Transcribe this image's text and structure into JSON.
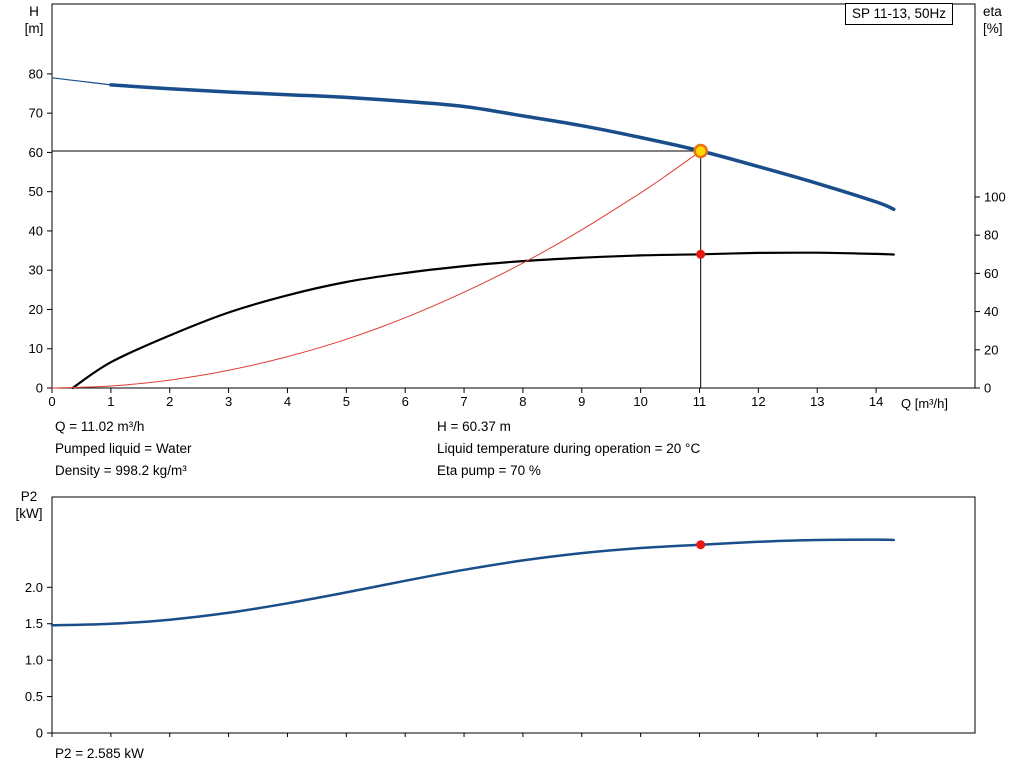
{
  "header": {
    "model": "SP 11-13, 50Hz"
  },
  "top_chart": {
    "y_left_symbol": "H",
    "y_left_unit": "[m]",
    "y_right_symbol": "eta",
    "y_right_unit": "[%]",
    "x_title": "Q [m³/h]"
  },
  "info": {
    "q": "Q = 11.02 m³/h",
    "liquid": "Pumped liquid = Water",
    "density": "Density = 998.2 kg/m³",
    "h": "H = 60.37 m",
    "temp": "Liquid temperature during operation = 20 °C",
    "eta": "Eta pump = 70 %"
  },
  "bottom_chart": {
    "y_symbol": "P2",
    "y_unit": "[kW]"
  },
  "p2_result": "P2 = 2.585 kW",
  "chart_data": [
    {
      "type": "line",
      "title": "SP 11-13, 50Hz",
      "xlabel": "Q [m³/h]",
      "ylabel_left": "H [m]",
      "ylabel_right": "eta [%]",
      "xlim": [
        0,
        15.68
      ],
      "ylim_left": [
        0,
        97.8
      ],
      "ylim_right": [
        0,
        201
      ],
      "grid": false,
      "legend": false,
      "x_ticks": {
        "values": [
          0,
          1,
          2,
          3,
          4,
          5,
          6,
          7,
          8,
          9,
          10,
          11,
          12,
          13,
          14
        ],
        "labels": [
          "0",
          "1",
          "2",
          "3",
          "4",
          "5",
          "6",
          "7",
          "8",
          "9",
          "10",
          "11",
          "12",
          "13",
          "14"
        ]
      },
      "y_ticks_left": {
        "values": [
          0,
          10,
          20,
          30,
          40,
          50,
          60,
          70,
          80
        ],
        "labels": [
          "0",
          "10",
          "20",
          "30",
          "40",
          "50",
          "60",
          "70",
          "80"
        ]
      },
      "y_ticks_right": {
        "values": [
          0,
          20,
          40,
          60,
          80,
          100
        ],
        "labels": [
          "0",
          "20",
          "40",
          "60",
          "80",
          "100"
        ]
      },
      "series": [
        {
          "name": "pump-curve-extension",
          "axis": "left",
          "color": "#1a4e8a",
          "width": 1.2,
          "points": [
            [
              0,
              79
            ],
            [
              0.5,
              78.1
            ],
            [
              1,
              77.2
            ]
          ]
        },
        {
          "name": "pump-curve",
          "axis": "left",
          "color": "#1a4e8a",
          "width": 3.5,
          "points": [
            [
              1,
              77.2
            ],
            [
              2,
              76.2
            ],
            [
              3,
              75.4
            ],
            [
              4,
              74.7
            ],
            [
              5,
              74.0
            ],
            [
              6,
              73.0
            ],
            [
              7,
              71.7
            ],
            [
              8,
              69.3
            ],
            [
              9,
              66.8
            ],
            [
              10,
              63.8
            ],
            [
              11.02,
              60.37
            ],
            [
              12,
              56.4
            ],
            [
              13,
              52.1
            ],
            [
              14,
              47.4
            ],
            [
              14.3,
              45.5
            ]
          ]
        },
        {
          "name": "efficiency-curve",
          "axis": "right",
          "color": "#000000",
          "width": 2.2,
          "points": [
            [
              0.35,
              0
            ],
            [
              1,
              13.5
            ],
            [
              2,
              27.5
            ],
            [
              3,
              39.5
            ],
            [
              4,
              48.5
            ],
            [
              5,
              55.5
            ],
            [
              6,
              60.2
            ],
            [
              7,
              63.8
            ],
            [
              8,
              66.4
            ],
            [
              9,
              68.2
            ],
            [
              10,
              69.4
            ],
            [
              11.02,
              70
            ],
            [
              12,
              70.7
            ],
            [
              13,
              70.8
            ],
            [
              14,
              70.2
            ],
            [
              14.3,
              69.9
            ]
          ]
        },
        {
          "name": "system-curve",
          "axis": "left",
          "color": "#e03c31",
          "width": 1,
          "points": [
            [
              0,
              0
            ],
            [
              1,
              0.5
            ],
            [
              2,
              2.0
            ],
            [
              3,
              4.5
            ],
            [
              4,
              8.0
            ],
            [
              5,
              12.4
            ],
            [
              6,
              17.9
            ],
            [
              7,
              24.4
            ],
            [
              8,
              31.8
            ],
            [
              9,
              40.3
            ],
            [
              10,
              49.7
            ],
            [
              10.5,
              54.8
            ],
            [
              11.02,
              60.37
            ]
          ]
        }
      ],
      "reference_lines": [
        {
          "name": "duty-head-line",
          "type": "h",
          "value": 60.37,
          "from": 0,
          "to": 11.02
        },
        {
          "name": "duty-flow-line",
          "type": "v",
          "value": 11.02,
          "from": 0,
          "to": 60.37
        }
      ],
      "markers": [
        {
          "name": "duty-point",
          "axis": "left",
          "x": 11.02,
          "y": 60.37,
          "r": 6,
          "fill": "#ffd900",
          "stroke": "#e87511",
          "stroke_width": 2.5
        },
        {
          "name": "eta-point",
          "axis": "right",
          "x": 11.02,
          "y": 70,
          "r": 4.5,
          "fill": "#e8190f",
          "stroke": "none",
          "stroke_width": 0
        }
      ],
      "duty_point": {
        "Q": 11.02,
        "H": 60.37,
        "eta": 70
      }
    },
    {
      "type": "line",
      "ylabel": "P2 [kW]",
      "xlim": [
        0,
        15.68
      ],
      "ylim": [
        0,
        3.24
      ],
      "grid": false,
      "legend": false,
      "x_ticks": {
        "values": [
          0,
          1,
          2,
          3,
          4,
          5,
          6,
          7,
          8,
          9,
          10,
          11,
          12,
          13,
          14
        ],
        "labels": []
      },
      "y_ticks": {
        "values": [
          0,
          0.5,
          1.0,
          1.5,
          2.0
        ],
        "labels": [
          "0",
          "0.5",
          "1.0",
          "1.5",
          "2.0"
        ]
      },
      "series": [
        {
          "name": "p2-curve",
          "color": "#1a4e8a",
          "width": 2.5,
          "points": [
            [
              0,
              1.48
            ],
            [
              1,
              1.5
            ],
            [
              2,
              1.555
            ],
            [
              3,
              1.65
            ],
            [
              4,
              1.78
            ],
            [
              5,
              1.93
            ],
            [
              6,
              2.09
            ],
            [
              7,
              2.24
            ],
            [
              8,
              2.37
            ],
            [
              9,
              2.47
            ],
            [
              10,
              2.54
            ],
            [
              11.02,
              2.585
            ],
            [
              12,
              2.625
            ],
            [
              13,
              2.65
            ],
            [
              14,
              2.655
            ],
            [
              14.3,
              2.65
            ]
          ]
        }
      ],
      "markers": [
        {
          "name": "p2-point",
          "x": 11.02,
          "y": 2.585,
          "r": 4.5,
          "fill": "#e8190f",
          "stroke": "none",
          "stroke_width": 0
        }
      ],
      "duty_point": {
        "Q": 11.02,
        "P2": 2.585
      }
    }
  ]
}
